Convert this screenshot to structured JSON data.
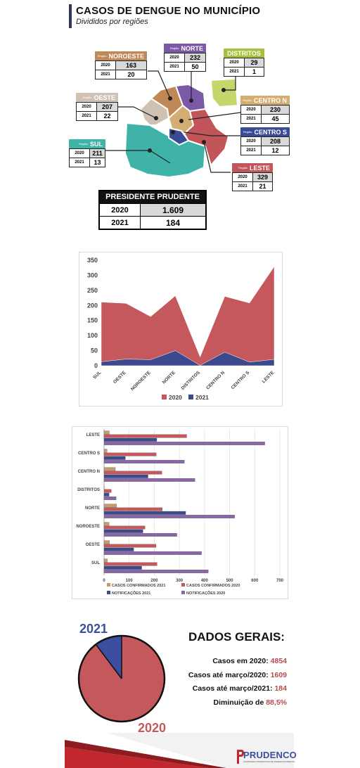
{
  "header": {
    "title": "CASOS DE DENGUE NO MUNICÍPIO",
    "subtitle": "Divididos por regiões"
  },
  "map": {
    "region_label": "Região",
    "regions": [
      {
        "name": "NOROESTE",
        "color": "#c08856",
        "y2020": "2020",
        "v2020": "163",
        "y2021": "2021",
        "v2021": "20"
      },
      {
        "name": "NORTE",
        "color": "#7b59a6",
        "y2020": "2020",
        "v2020": "232",
        "y2021": "2021",
        "v2021": "50"
      },
      {
        "name": "DISTRITOS",
        "color": "#a5c13c",
        "y2020": "2020",
        "v2020": "29",
        "y2021": "2021",
        "v2021": "1"
      },
      {
        "name": "OESTE",
        "color": "#cfc2b4",
        "y2020": "2020",
        "v2020": "207",
        "y2021": "2021",
        "v2021": "22"
      },
      {
        "name": "CENTRO N",
        "color": "#d4ad73",
        "y2020": "2020",
        "v2020": "230",
        "y2021": "2021",
        "v2021": "45"
      },
      {
        "name": "CENTRO S",
        "color": "#3a4b95",
        "y2020": "2020",
        "v2020": "208",
        "y2021": "2021",
        "v2021": "12"
      },
      {
        "name": "SUL",
        "color": "#3fb3a8",
        "y2020": "2020",
        "v2020": "211",
        "y2021": "2021",
        "v2021": "13"
      },
      {
        "name": "LESTE",
        "color": "#c25559",
        "y2020": "2020",
        "v2020": "329",
        "y2021": "2021",
        "v2021": "21"
      }
    ]
  },
  "presidente": {
    "title": "PRESIDENTE PRUDENTE",
    "rows": [
      {
        "year": "2020",
        "value": "1.609"
      },
      {
        "year": "2021",
        "value": "184"
      }
    ]
  },
  "chart_data": [
    {
      "type": "area",
      "categories": [
        "SUL",
        "OESTE",
        "NOROESTE",
        "NORTE",
        "DISTRITOS",
        "CENTRO N",
        "CENTRO S",
        "LESTE"
      ],
      "series": [
        {
          "name": "2020",
          "color": "#c4585d",
          "values": [
            211,
            207,
            163,
            232,
            29,
            230,
            208,
            329
          ]
        },
        {
          "name": "2021",
          "color": "#3b4a8c",
          "values": [
            13,
            22,
            20,
            50,
            1,
            45,
            12,
            21
          ]
        }
      ],
      "ylim": [
        0,
        350
      ],
      "yticks": [
        0,
        50,
        100,
        150,
        200,
        250,
        300,
        350
      ],
      "grid": false,
      "legend": "bottom"
    },
    {
      "type": "bar",
      "orientation": "horizontal",
      "categories": [
        "LESTE",
        "CENTRO S",
        "CENTRO N",
        "DISTRITOS",
        "NORTE",
        "NOROESTE",
        "OESTE",
        "SUL"
      ],
      "series": [
        {
          "name": "CASOS CONFIRMADOS 2021",
          "color": "#c99a6b",
          "values": [
            21,
            12,
            45,
            1,
            50,
            20,
            22,
            13
          ]
        },
        {
          "name": "CASOS CONFIRMADOS 2020",
          "color": "#c4585d",
          "values": [
            329,
            208,
            230,
            29,
            232,
            163,
            207,
            211
          ]
        },
        {
          "name": "NOTIFICAÇÕES 2021",
          "color": "#3b4a8c",
          "values": [
            210,
            85,
            175,
            20,
            325,
            155,
            118,
            150
          ]
        },
        {
          "name": "NOTIFICAÇÕES 2020",
          "color": "#8a67a8",
          "values": [
            640,
            320,
            362,
            48,
            520,
            290,
            388,
            415
          ]
        }
      ],
      "xlim": [
        0,
        700
      ],
      "xticks": [
        0,
        100,
        200,
        300,
        400,
        500,
        600,
        700
      ],
      "grid": true,
      "legend": "bottom"
    },
    {
      "type": "pie",
      "slices": [
        {
          "label": "2020",
          "value": 1609,
          "color": "#c4585d"
        },
        {
          "label": "2021",
          "value": 184,
          "color": "#3b4ea0"
        }
      ]
    }
  ],
  "dados_gerais": {
    "title": "DADOS GERAIS:",
    "lines": [
      {
        "label": "Casos em 2020: ",
        "value": "4854"
      },
      {
        "label": "Casos até março/2020: ",
        "value": "1609"
      },
      {
        "label": "Casos até março/2021: ",
        "value": "184"
      },
      {
        "label": "Diminuição de ",
        "value": "88,5%"
      }
    ]
  },
  "footer": {
    "brand": "PRUDENCO",
    "tagline": "COMPANHIA PRUDENTINA DE DESENVOLVIMENTO"
  }
}
